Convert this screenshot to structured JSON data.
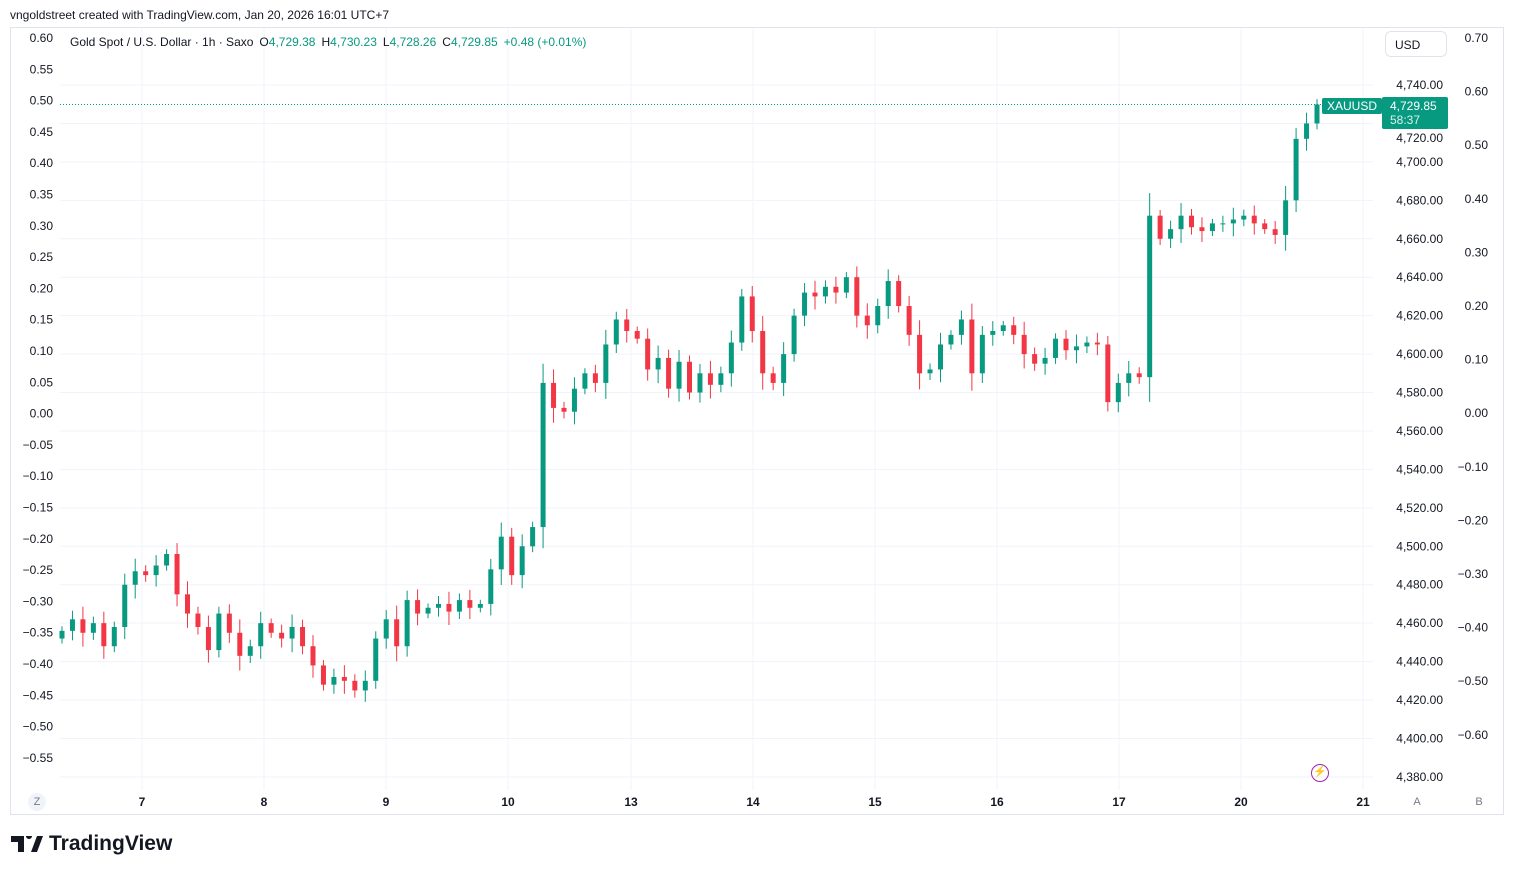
{
  "credit": "vngoldstreet created with TradingView.com, Jan 20, 2026 16:01 UTC+7",
  "legend": {
    "title": "Gold Spot / U.S. Dollar · 1h · Saxo",
    "o_label": "O",
    "o": "4,729.38",
    "h_label": "H",
    "h": "4,730.23",
    "l_label": "L",
    "l": "4,728.26",
    "c_label": "C",
    "c": "4,729.85",
    "change": "+0.48 (+0.01%)"
  },
  "currency": "USD",
  "last_price": {
    "symbol": "XAUUSD",
    "price": "4,729.85",
    "countdown": "58:37",
    "value": 4729.85
  },
  "bottom_buttons": {
    "z": "Z",
    "a": "A",
    "b": "B"
  },
  "brand": "TradingView",
  "colors": {
    "up": "#089981",
    "down": "#f23645",
    "grid": "#f0f3fa",
    "text": "#131722",
    "accent": "#9c27b0"
  },
  "chart_data": {
    "type": "candlestick",
    "interval": "1h",
    "x_tick_labels": [
      "7",
      "8",
      "9",
      "10",
      "13",
      "14",
      "15",
      "16",
      "17",
      "20",
      "21"
    ],
    "price_axis": {
      "ylim": [
        4375,
        4752
      ],
      "ticks": [
        "4,740.00",
        "4,720.00",
        "4,700.00",
        "4,680.00",
        "4,660.00",
        "4,640.00",
        "4,620.00",
        "4,600.00",
        "4,580.00",
        "4,560.00",
        "4,540.00",
        "4,520.00",
        "4,500.00",
        "4,480.00",
        "4,460.00",
        "4,440.00",
        "4,420.00",
        "4,400.00",
        "4,380.00"
      ],
      "tick_values": [
        4740,
        4720,
        4700,
        4680,
        4660,
        4640,
        4620,
        4600,
        4580,
        4560,
        4540,
        4520,
        4500,
        4480,
        4460,
        4440,
        4420,
        4400,
        4380
      ]
    },
    "left_axis_ticks": [
      "0.60",
      "0.55",
      "0.50",
      "0.45",
      "0.40",
      "0.35",
      "0.30",
      "0.25",
      "0.20",
      "0.15",
      "0.10",
      "0.05",
      "0.00",
      "−0.05",
      "−0.10",
      "−0.15",
      "−0.20",
      "−0.25",
      "−0.30",
      "−0.35",
      "−0.40",
      "−0.45",
      "−0.50",
      "−0.55"
    ],
    "right_axis_ticks": [
      "0.70",
      "0.60",
      "0.50",
      "0.40",
      "0.30",
      "0.20",
      "0.10",
      "0.00",
      "−0.10",
      "−0.20",
      "−0.30",
      "−0.40",
      "−0.50",
      "−0.60"
    ],
    "first_open": 4452,
    "closes": [
      4456,
      4462,
      4455,
      4460,
      4448,
      4458,
      4480,
      4487,
      4485,
      4490,
      4496,
      4475,
      4465,
      4458,
      4446,
      4465,
      4455,
      4443,
      4448,
      4460,
      4455,
      4452,
      4458,
      4448,
      4438,
      4428,
      4432,
      4430,
      4425,
      4430,
      4452,
      4462,
      4448,
      4472,
      4465,
      4468,
      4470,
      4466,
      4472,
      4468,
      4470,
      4488,
      4505,
      4485,
      4500,
      4510,
      4585,
      4572,
      4570,
      4582,
      4590,
      4585,
      4605,
      4618,
      4612,
      4608,
      4592,
      4598,
      4582,
      4596,
      4580,
      4590,
      4584,
      4590,
      4606,
      4630,
      4612,
      4590,
      4585,
      4600,
      4620,
      4632,
      4630,
      4635,
      4632,
      4640,
      4620,
      4615,
      4625,
      4638,
      4625,
      4610,
      4590,
      4592,
      4605,
      4610,
      4618,
      4590,
      4610,
      4612,
      4615,
      4610,
      4600,
      4595,
      4598,
      4608,
      4602,
      4604,
      4606,
      4605,
      4575,
      4585,
      4590,
      4588,
      4672,
      4660,
      4665,
      4672,
      4666,
      4664,
      4668,
      4668,
      4670,
      4672,
      4668,
      4665,
      4662,
      4680,
      4712,
      4720,
      4729.85
    ]
  }
}
